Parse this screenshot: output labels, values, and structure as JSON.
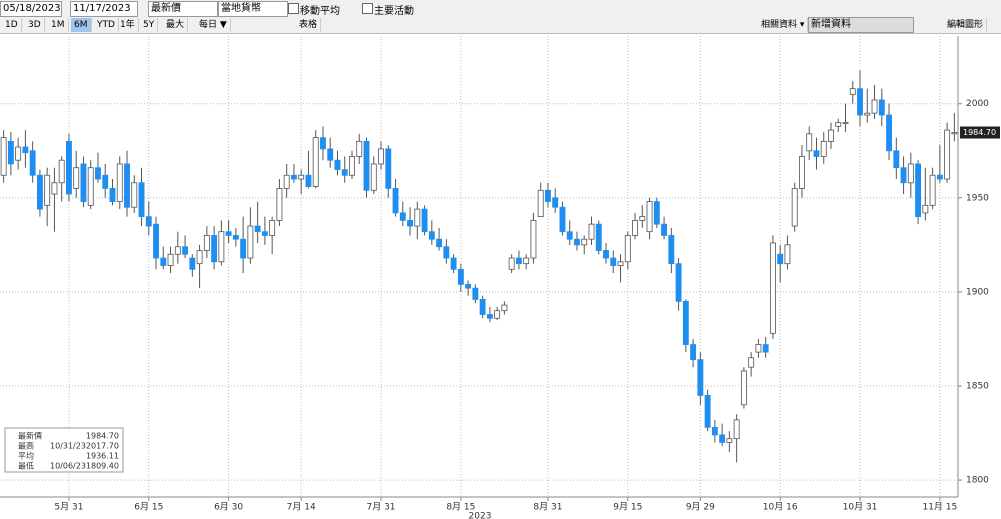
{
  "toolbar": {
    "start_date": "05/18/2023",
    "end_date": "11/17/2023",
    "price_field": "最新價",
    "currency": "當地貨幣",
    "moving_average": "移動平均",
    "key_events": "主要活動",
    "ranges": [
      "1D",
      "3D",
      "1M",
      "6M",
      "YTD",
      "1年",
      "5Y",
      "最大"
    ],
    "active_range": "6M",
    "frequency": "每日 ▼",
    "table": "表格",
    "related": "相關資料 ▾",
    "add_data": "新增資料",
    "edit_chart": "編輯圖形"
  },
  "chart_data": {
    "type": "candlestick",
    "x_label": "2023",
    "categories": [
      null,
      null,
      null,
      null,
      null,
      null,
      null,
      null,
      null,
      "5月 31",
      null,
      null,
      null,
      null,
      null,
      null,
      null,
      null,
      null,
      null,
      "6月 15",
      null,
      null,
      null,
      null,
      null,
      null,
      null,
      null,
      null,
      null,
      "6月 30",
      null,
      null,
      null,
      null,
      null,
      null,
      null,
      null,
      null,
      "7月 14",
      null,
      null,
      null,
      null,
      null,
      null,
      null,
      null,
      null,
      null,
      "7月 31",
      null,
      null,
      null,
      null,
      null,
      null,
      null,
      null,
      null,
      null,
      "8月 15",
      null,
      null,
      null,
      null,
      null,
      null,
      null,
      null,
      null,
      null,
      null,
      "8月 31",
      null,
      null,
      null,
      null,
      null,
      null,
      null,
      null,
      null,
      null,
      "9月 15",
      null,
      null,
      null,
      null,
      null,
      null,
      null,
      null,
      null,
      "9月 29",
      null,
      null,
      null,
      null,
      null,
      null,
      null,
      null,
      null,
      null,
      "10月 16",
      null,
      null,
      null,
      null,
      null,
      null,
      null,
      null,
      null,
      null,
      "10月 31",
      null,
      null,
      null,
      null,
      null,
      null,
      null,
      null,
      null,
      null,
      "11月 15",
      null,
      null
    ],
    "ohlc": [
      [
        1962,
        1986,
        1958,
        1982
      ],
      [
        1980,
        1985,
        1962,
        1968
      ],
      [
        1970,
        1982,
        1965,
        1977
      ],
      [
        1977,
        1986,
        1966,
        1974
      ],
      [
        1975,
        1980,
        1958,
        1962
      ],
      [
        1962,
        1965,
        1940,
        1944
      ],
      [
        1946,
        1966,
        1935,
        1962
      ],
      [
        1952,
        1966,
        1932,
        1958
      ],
      [
        1958,
        1972,
        1948,
        1970
      ],
      [
        1980,
        1984,
        1948,
        1952
      ],
      [
        1955,
        1975,
        1950,
        1966
      ],
      [
        1968,
        1972,
        1945,
        1948
      ],
      [
        1946,
        1970,
        1944,
        1966
      ],
      [
        1966,
        1974,
        1958,
        1960
      ],
      [
        1962,
        1968,
        1950,
        1955
      ],
      [
        1955,
        1960,
        1946,
        1948
      ],
      [
        1948,
        1972,
        1944,
        1968
      ],
      [
        1968,
        1975,
        1940,
        1945
      ],
      [
        1945,
        1962,
        1942,
        1958
      ],
      [
        1958,
        1966,
        1935,
        1940
      ],
      [
        1940,
        1948,
        1930,
        1935
      ],
      [
        1936,
        1940,
        1912,
        1918
      ],
      [
        1918,
        1924,
        1912,
        1914
      ],
      [
        1914,
        1924,
        1910,
        1920
      ],
      [
        1920,
        1932,
        1915,
        1924
      ],
      [
        1924,
        1930,
        1918,
        1920
      ],
      [
        1918,
        1920,
        1908,
        1912
      ],
      [
        1915,
        1925,
        1902,
        1922
      ],
      [
        1922,
        1935,
        1918,
        1930
      ],
      [
        1930,
        1935,
        1912,
        1916
      ],
      [
        1916,
        1938,
        1914,
        1932
      ],
      [
        1932,
        1938,
        1926,
        1930
      ],
      [
        1930,
        1934,
        1924,
        1928
      ],
      [
        1928,
        1940,
        1910,
        1918
      ],
      [
        1918,
        1945,
        1915,
        1935
      ],
      [
        1935,
        1948,
        1926,
        1932
      ],
      [
        1932,
        1940,
        1925,
        1930
      ],
      [
        1930,
        1940,
        1920,
        1938
      ],
      [
        1938,
        1960,
        1935,
        1955
      ],
      [
        1955,
        1968,
        1950,
        1962
      ],
      [
        1962,
        1968,
        1958,
        1960
      ],
      [
        1960,
        1965,
        1952,
        1962
      ],
      [
        1962,
        1975,
        1955,
        1956
      ],
      [
        1956,
        1986,
        1955,
        1982
      ],
      [
        1982,
        1988,
        1970,
        1976
      ],
      [
        1976,
        1982,
        1966,
        1970
      ],
      [
        1970,
        1975,
        1962,
        1965
      ],
      [
        1965,
        1972,
        1958,
        1962
      ],
      [
        1962,
        1975,
        1960,
        1972
      ],
      [
        1972,
        1984,
        1968,
        1980
      ],
      [
        1980,
        1982,
        1950,
        1954
      ],
      [
        1954,
        1972,
        1952,
        1968
      ],
      [
        1968,
        1980,
        1965,
        1976
      ],
      [
        1976,
        1978,
        1950,
        1955
      ],
      [
        1955,
        1960,
        1940,
        1942
      ],
      [
        1942,
        1948,
        1935,
        1938
      ],
      [
        1938,
        1945,
        1930,
        1935
      ],
      [
        1935,
        1948,
        1928,
        1944
      ],
      [
        1944,
        1946,
        1930,
        1932
      ],
      [
        1932,
        1938,
        1925,
        1928
      ],
      [
        1928,
        1934,
        1922,
        1924
      ],
      [
        1924,
        1928,
        1915,
        1918
      ],
      [
        1918,
        1920,
        1910,
        1912
      ],
      [
        1912,
        1915,
        1900,
        1904
      ],
      [
        1904,
        1906,
        1898,
        1902
      ],
      [
        1902,
        1904,
        1894,
        1896
      ],
      [
        1896,
        1898,
        1886,
        1888
      ],
      [
        1888,
        1892,
        1884,
        1886
      ],
      [
        1886,
        1892,
        1885,
        1890
      ],
      [
        1890,
        1895,
        1888,
        1893
      ],
      [
        1912,
        1920,
        1910,
        1918
      ],
      [
        1918,
        1922,
        1912,
        1915
      ],
      [
        1915,
        1920,
        1912,
        1918
      ],
      [
        1918,
        1942,
        1915,
        1938
      ],
      [
        1940,
        1958,
        1940,
        1954
      ],
      [
        1954,
        1958,
        1945,
        1948
      ],
      [
        1950,
        1955,
        1942,
        1945
      ],
      [
        1945,
        1948,
        1930,
        1932
      ],
      [
        1932,
        1938,
        1925,
        1928
      ],
      [
        1928,
        1932,
        1922,
        1925
      ],
      [
        1925,
        1930,
        1920,
        1928
      ],
      [
        1928,
        1940,
        1925,
        1936
      ],
      [
        1936,
        1938,
        1920,
        1922
      ],
      [
        1922,
        1926,
        1915,
        1918
      ],
      [
        1918,
        1922,
        1910,
        1914
      ],
      [
        1914,
        1920,
        1905,
        1916
      ],
      [
        1916,
        1932,
        1912,
        1930
      ],
      [
        1930,
        1942,
        1928,
        1938
      ],
      [
        1938,
        1946,
        1934,
        1940
      ],
      [
        1932,
        1950,
        1928,
        1948
      ],
      [
        1948,
        1950,
        1934,
        1936
      ],
      [
        1936,
        1940,
        1928,
        1930
      ],
      [
        1930,
        1934,
        1910,
        1915
      ],
      [
        1915,
        1918,
        1890,
        1895
      ],
      [
        1895,
        1896,
        1868,
        1872
      ],
      [
        1872,
        1875,
        1860,
        1864
      ],
      [
        1864,
        1868,
        1840,
        1845
      ],
      [
        1845,
        1848,
        1826,
        1828
      ],
      [
        1828,
        1832,
        1820,
        1824
      ],
      [
        1824,
        1830,
        1818,
        1820
      ],
      [
        1820,
        1826,
        1815,
        1822
      ],
      [
        1822,
        1835,
        1809.4,
        1832
      ],
      [
        1840,
        1860,
        1838,
        1858
      ],
      [
        1860,
        1868,
        1855,
        1865
      ],
      [
        1868,
        1875,
        1865,
        1872
      ],
      [
        1872,
        1876,
        1865,
        1868
      ],
      [
        1878,
        1930,
        1875,
        1926
      ],
      [
        1920,
        1925,
        1905,
        1915
      ],
      [
        1915,
        1930,
        1912,
        1925
      ],
      [
        1935,
        1958,
        1932,
        1955
      ],
      [
        1955,
        1978,
        1950,
        1972
      ],
      [
        1975,
        1988,
        1970,
        1984
      ],
      [
        1975,
        1982,
        1965,
        1972
      ],
      [
        1972,
        1985,
        1968,
        1980
      ],
      [
        1980,
        1990,
        1976,
        1986
      ],
      [
        1988,
        1992,
        1985,
        1990
      ],
      [
        1990,
        2000,
        1985,
        1990
      ],
      [
        2005,
        2012,
        2000,
        2008
      ],
      [
        2008,
        2017.7,
        1988,
        1994
      ],
      [
        1994,
        2008,
        1990,
        1995
      ],
      [
        1995,
        2010,
        1992,
        2002
      ],
      [
        2002,
        2008,
        1988,
        1994
      ],
      [
        1994,
        2000,
        1970,
        1975
      ],
      [
        1975,
        1982,
        1960,
        1966
      ],
      [
        1966,
        1972,
        1952,
        1958
      ],
      [
        1958,
        1974,
        1950,
        1968
      ],
      [
        1968,
        1970,
        1936,
        1940
      ],
      [
        1942,
        1966,
        1938,
        1946
      ],
      [
        1946,
        1966,
        1944,
        1962
      ],
      [
        1962,
        1978,
        1958,
        1960
      ],
      [
        1960,
        1990,
        1958,
        1986
      ],
      [
        1984,
        1995,
        1980,
        1984.7
      ]
    ],
    "up_color": "#ffffff",
    "down_color": "#1e8ff0",
    "wick_color": "#555555",
    "ylim": [
      1791,
      2036
    ],
    "yticks": [
      1800,
      1850,
      1900,
      1950,
      2000
    ],
    "grid": true,
    "last_price": {
      "value": 1984.7,
      "label": "1984.70"
    },
    "legend": [
      {
        "name": "最新價",
        "value": "1984.70"
      },
      {
        "name": "最高",
        "date": "10/31/23",
        "value": "2017.70"
      },
      {
        "name": "平均",
        "value": "1936.11"
      },
      {
        "name": "最低",
        "date": "10/06/23",
        "value": "1809.40"
      }
    ]
  }
}
